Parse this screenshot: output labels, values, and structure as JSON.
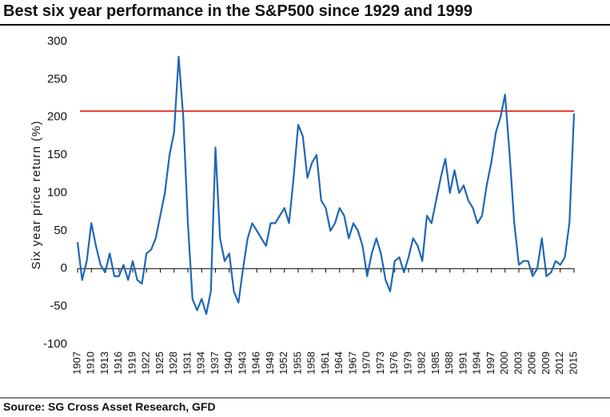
{
  "chart_data": {
    "type": "line",
    "title": "Best six year performance in the S&P500 since 1929 and 1999",
    "y_label": "Six year price return (%)",
    "source": "Source: SG Cross Asset Research, GFD",
    "x": [
      1907,
      1908,
      1909,
      1910,
      1911,
      1912,
      1913,
      1914,
      1915,
      1916,
      1917,
      1918,
      1919,
      1920,
      1921,
      1922,
      1923,
      1924,
      1925,
      1926,
      1927,
      1928,
      1929,
      1930,
      1931,
      1932,
      1933,
      1934,
      1935,
      1936,
      1937,
      1938,
      1939,
      1940,
      1941,
      1942,
      1943,
      1944,
      1945,
      1946,
      1947,
      1948,
      1949,
      1950,
      1951,
      1952,
      1953,
      1954,
      1955,
      1956,
      1957,
      1958,
      1959,
      1960,
      1961,
      1962,
      1963,
      1964,
      1965,
      1966,
      1967,
      1968,
      1969,
      1970,
      1971,
      1972,
      1973,
      1974,
      1975,
      1976,
      1977,
      1978,
      1979,
      1980,
      1981,
      1982,
      1983,
      1984,
      1985,
      1986,
      1987,
      1988,
      1989,
      1990,
      1991,
      1992,
      1993,
      1994,
      1995,
      1996,
      1997,
      1998,
      1999,
      2000,
      2001,
      2002,
      2003,
      2004,
      2005,
      2006,
      2007,
      2008,
      2009,
      2010,
      2011,
      2012,
      2013,
      2014,
      2015
    ],
    "series": [
      {
        "name": "S&P500 six year price return",
        "color": "#1f67b4",
        "values": [
          35,
          -15,
          10,
          60,
          30,
          5,
          -5,
          20,
          -10,
          -10,
          5,
          -15,
          10,
          -15,
          -20,
          20,
          25,
          40,
          70,
          100,
          150,
          180,
          280,
          200,
          60,
          -40,
          -55,
          -40,
          -60,
          -30,
          160,
          40,
          10,
          20,
          -30,
          -45,
          0,
          40,
          60,
          50,
          40,
          30,
          60,
          60,
          70,
          80,
          60,
          120,
          190,
          175,
          120,
          140,
          150,
          90,
          80,
          50,
          60,
          80,
          70,
          40,
          60,
          50,
          30,
          -10,
          20,
          40,
          20,
          -15,
          -30,
          10,
          15,
          -5,
          15,
          40,
          30,
          10,
          70,
          60,
          90,
          120,
          145,
          100,
          130,
          100,
          110,
          90,
          80,
          60,
          70,
          110,
          140,
          180,
          200,
          230,
          150,
          60,
          5,
          10,
          10,
          -10,
          0,
          40,
          -10,
          -5,
          10,
          5,
          15,
          60,
          205
        ]
      }
    ],
    "reference_line": {
      "value": 208,
      "color": "#e8392b"
    },
    "xlim": [
      1907,
      2015
    ],
    "xticks": [
      1907,
      1910,
      1913,
      1916,
      1919,
      1922,
      1925,
      1928,
      1931,
      1934,
      1937,
      1940,
      1943,
      1946,
      1949,
      1952,
      1955,
      1958,
      1961,
      1964,
      1967,
      1970,
      1973,
      1976,
      1979,
      1982,
      1985,
      1988,
      1991,
      1994,
      1997,
      2000,
      2003,
      2006,
      2009,
      2012,
      2015
    ],
    "ylim": [
      -100,
      300
    ],
    "yticks": [
      -100,
      -50,
      0,
      50,
      100,
      150,
      200,
      250,
      300
    ]
  }
}
